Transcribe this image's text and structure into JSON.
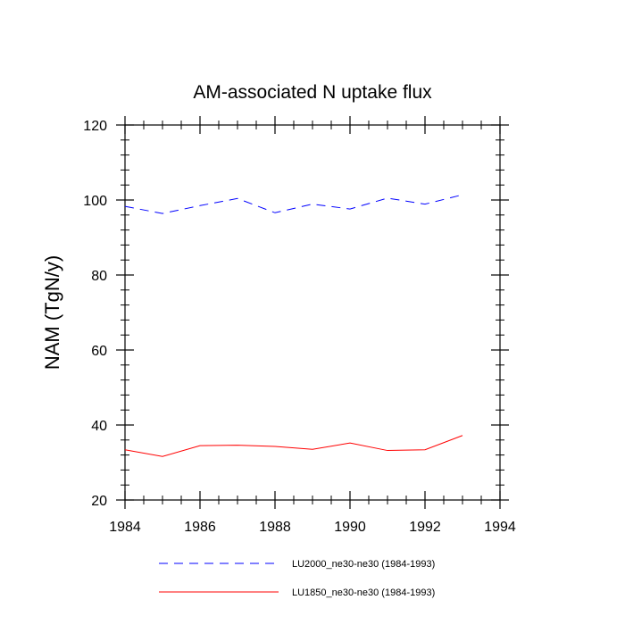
{
  "chart_data": {
    "type": "line",
    "title": "AM-associated N uptake flux",
    "xlabel": "",
    "ylabel": "NAM  (TgN/y)",
    "xlim": [
      1984,
      1994
    ],
    "ylim": [
      20,
      120
    ],
    "x_ticks": [
      1984,
      1986,
      1988,
      1990,
      1992,
      1994
    ],
    "y_ticks": [
      20,
      40,
      60,
      80,
      100,
      120
    ],
    "grid": false,
    "legend_position": "bottom",
    "x": [
      1984,
      1985,
      1986,
      1987,
      1988,
      1989,
      1990,
      1991,
      1992,
      1993
    ],
    "series": [
      {
        "name": "LU2000_ne30-ne30 (1984-1993)",
        "color": "#0000ff",
        "dash": "dashed",
        "values": [
          98.3,
          96.4,
          98.5,
          100.4,
          96.6,
          98.9,
          97.6,
          100.5,
          98.9,
          101.4
        ]
      },
      {
        "name": "LU1850_ne30-ne30 (1984-1993)",
        "color": "#ff0000",
        "dash": "solid",
        "values": [
          33.4,
          31.6,
          34.5,
          34.6,
          34.3,
          33.5,
          35.2,
          33.2,
          33.4,
          37.2
        ]
      }
    ]
  }
}
